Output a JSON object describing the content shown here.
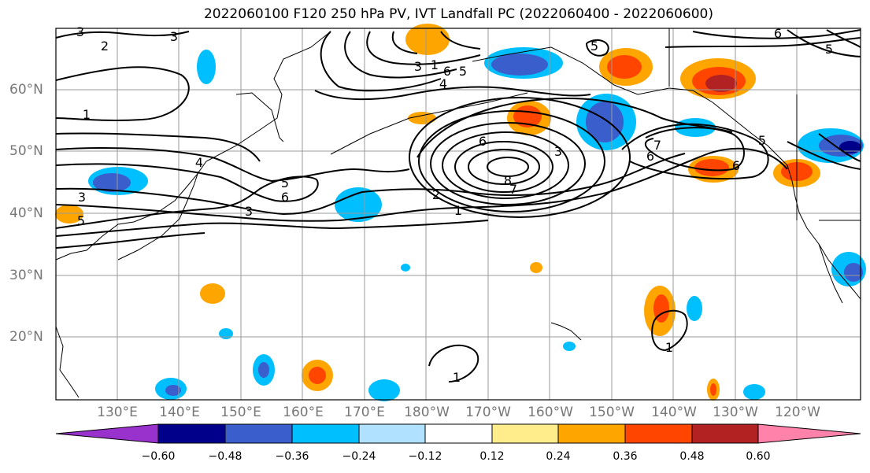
{
  "title": "2022060100 F120 250 hPa PV, IVT Landfall PC (2022060400 - 2022060600)",
  "lat_labels": [
    "60°N",
    "50°N",
    "40°N",
    "30°N",
    "20°N"
  ],
  "lon_labels": [
    "130°E",
    "140°E",
    "150°E",
    "160°E",
    "170°E",
    "180°W",
    "170°W",
    "160°W",
    "150°W",
    "140°W",
    "130°W",
    "120°W"
  ],
  "colorbar": {
    "ticks": [
      "−0.60",
      "−0.48",
      "−0.36",
      "−0.24",
      "−0.12",
      "0.12",
      "0.24",
      "0.36",
      "0.48",
      "0.60"
    ],
    "colors": [
      "#9932cc",
      "#00008b",
      "#3a5fcd",
      "#00bfff",
      "#b0e2ff",
      "#ffffff",
      "#ffec8b",
      "#ffa500",
      "#ff4500",
      "#b22222",
      "#ff82ab"
    ]
  },
  "contour_labels": [
    {
      "text": "3"
    },
    {
      "text": "2"
    },
    {
      "text": "3"
    },
    {
      "text": "1"
    },
    {
      "text": "4"
    },
    {
      "text": "3"
    },
    {
      "text": "5"
    },
    {
      "text": "3"
    },
    {
      "text": "5"
    },
    {
      "text": "6"
    },
    {
      "text": "3"
    },
    {
      "text": "1"
    },
    {
      "text": "6"
    },
    {
      "text": "5"
    },
    {
      "text": "4"
    },
    {
      "text": "5"
    },
    {
      "text": "6"
    },
    {
      "text": "3"
    },
    {
      "text": "8"
    },
    {
      "text": "7"
    },
    {
      "text": "2"
    },
    {
      "text": "1"
    },
    {
      "text": "6"
    },
    {
      "text": "7"
    },
    {
      "text": "6"
    },
    {
      "text": "5"
    },
    {
      "text": "5"
    },
    {
      "text": "6"
    },
    {
      "text": "1"
    },
    {
      "text": "1"
    }
  ]
}
